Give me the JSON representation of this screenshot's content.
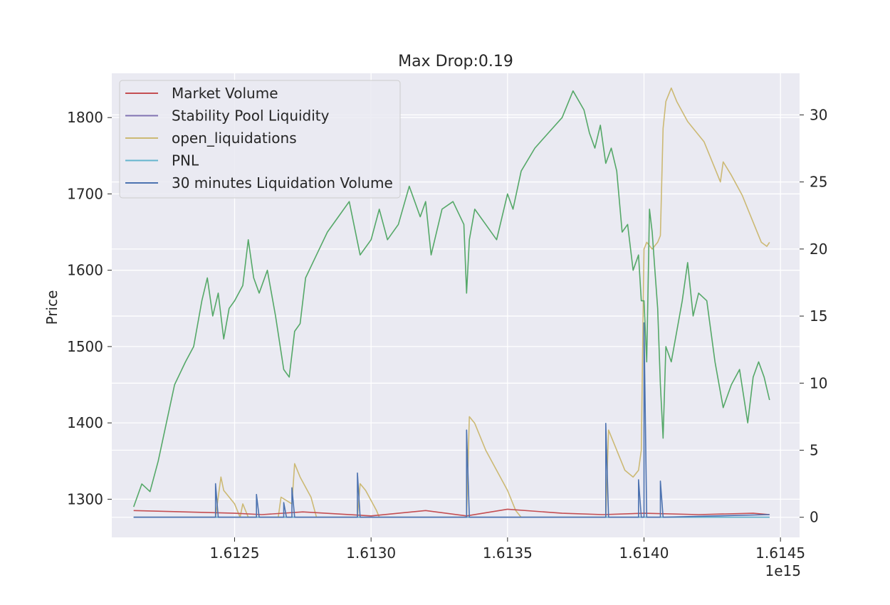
{
  "chart_data": {
    "type": "line",
    "title": "Max Drop:0.19",
    "ylabel": "Price",
    "ylabel_color": "#55a868",
    "x_offset_label": "1e15",
    "xlim": [
      1.61205,
      1.61457
    ],
    "ylim_left": [
      1250,
      1858
    ],
    "ylim_right": [
      -1.5,
      33.1
    ],
    "x_ticks": [
      {
        "value": 1.6125,
        "label": "1.6125"
      },
      {
        "value": 1.613,
        "label": "1.6130"
      },
      {
        "value": 1.6135,
        "label": "1.6135"
      },
      {
        "value": 1.614,
        "label": "1.6140"
      },
      {
        "value": 1.6145,
        "label": "1.6145"
      }
    ],
    "y_ticks_left": [
      {
        "value": 1300,
        "label": "1300"
      },
      {
        "value": 1400,
        "label": "1400"
      },
      {
        "value": 1500,
        "label": "1500"
      },
      {
        "value": 1600,
        "label": "1600"
      },
      {
        "value": 1700,
        "label": "1700"
      },
      {
        "value": 1800,
        "label": "1800"
      }
    ],
    "y_ticks_right": [
      {
        "value": 0,
        "label": "0"
      },
      {
        "value": 5,
        "label": "5"
      },
      {
        "value": 10,
        "label": "10"
      },
      {
        "value": 15,
        "label": "15"
      },
      {
        "value": 20,
        "label": "20"
      },
      {
        "value": 25,
        "label": "25"
      },
      {
        "value": 30,
        "label": "30"
      }
    ],
    "grid": true,
    "legend_position": "top-left",
    "series": [
      {
        "name": "Price",
        "axis": "left",
        "color": "#55a868",
        "in_legend": false,
        "x": [
          1.61213,
          1.61216,
          1.61219,
          1.61222,
          1.61225,
          1.61228,
          1.61232,
          1.61235,
          1.61238,
          1.6124,
          1.61242,
          1.61244,
          1.61246,
          1.61248,
          1.6125,
          1.61253,
          1.61255,
          1.61257,
          1.61259,
          1.61262,
          1.61265,
          1.61268,
          1.6127,
          1.61272,
          1.61274,
          1.61276,
          1.6128,
          1.61284,
          1.61288,
          1.61292,
          1.61296,
          1.613,
          1.61303,
          1.61306,
          1.6131,
          1.61314,
          1.61318,
          1.6132,
          1.61322,
          1.61326,
          1.6133,
          1.61334,
          1.61335,
          1.61336,
          1.61338,
          1.61342,
          1.61346,
          1.6135,
          1.61352,
          1.61355,
          1.6136,
          1.61365,
          1.6137,
          1.61374,
          1.61378,
          1.6138,
          1.61382,
          1.61384,
          1.61386,
          1.61388,
          1.6139,
          1.61392,
          1.61394,
          1.61396,
          1.61398,
          1.61399,
          1.614,
          1.61401,
          1.61402,
          1.61403,
          1.61404,
          1.61405,
          1.61406,
          1.61407,
          1.61408,
          1.6141,
          1.61412,
          1.61414,
          1.61416,
          1.61418,
          1.6142,
          1.61423,
          1.61426,
          1.61429,
          1.61432,
          1.61435,
          1.61438,
          1.6144,
          1.61442,
          1.61444,
          1.61446
        ],
        "y": [
          1290,
          1320,
          1310,
          1350,
          1400,
          1450,
          1480,
          1500,
          1560,
          1590,
          1540,
          1570,
          1510,
          1550,
          1560,
          1580,
          1640,
          1590,
          1570,
          1600,
          1540,
          1470,
          1460,
          1520,
          1530,
          1590,
          1620,
          1650,
          1670,
          1690,
          1620,
          1640,
          1680,
          1640,
          1660,
          1710,
          1670,
          1690,
          1620,
          1680,
          1690,
          1660,
          1570,
          1640,
          1680,
          1660,
          1640,
          1700,
          1680,
          1730,
          1760,
          1780,
          1800,
          1835,
          1810,
          1780,
          1760,
          1790,
          1740,
          1760,
          1730,
          1650,
          1660,
          1600,
          1620,
          1560,
          1560,
          1480,
          1680,
          1650,
          1600,
          1550,
          1450,
          1380,
          1500,
          1480,
          1520,
          1560,
          1610,
          1540,
          1570,
          1560,
          1480,
          1420,
          1450,
          1470,
          1400,
          1460,
          1480,
          1460,
          1430
        ]
      },
      {
        "name": "Market Volume",
        "axis": "right",
        "color": "#c44e52",
        "in_legend": true,
        "x": [
          1.61213,
          1.6125,
          1.6126,
          1.61275,
          1.613,
          1.6131,
          1.6132,
          1.61335,
          1.6135,
          1.6137,
          1.61385,
          1.614,
          1.6142,
          1.6144,
          1.61446
        ],
        "y": [
          0.5,
          0.3,
          0.2,
          0.4,
          0.1,
          0.3,
          0.5,
          0.1,
          0.6,
          0.3,
          0.2,
          0.3,
          0.2,
          0.3,
          0.2
        ]
      },
      {
        "name": "Stability Pool Liquidity",
        "axis": "right",
        "color": "#8172b2",
        "in_legend": true,
        "x": [
          1.61213,
          1.61446
        ],
        "y": [
          0,
          0
        ]
      },
      {
        "name": "open_liquidations",
        "axis": "right",
        "color": "#ccb974",
        "in_legend": true,
        "x": [
          1.61213,
          1.61243,
          1.61244,
          1.61245,
          1.61246,
          1.6125,
          1.61252,
          1.61253,
          1.61255,
          1.61266,
          1.61267,
          1.61271,
          1.61272,
          1.61274,
          1.61278,
          1.6128,
          1.61295,
          1.61296,
          1.61298,
          1.61302,
          1.61303,
          1.61335,
          1.61336,
          1.61338,
          1.61342,
          1.61346,
          1.6135,
          1.61353,
          1.61355,
          1.61386,
          1.61387,
          1.6139,
          1.61393,
          1.61396,
          1.61398,
          1.61399,
          1.614,
          1.61401,
          1.61403,
          1.61405,
          1.61406,
          1.61407,
          1.61408,
          1.6141,
          1.61412,
          1.61416,
          1.61418,
          1.61422,
          1.61426,
          1.61428,
          1.61429,
          1.61432,
          1.61436,
          1.6144,
          1.61443,
          1.61445,
          1.61446
        ],
        "y": [
          0,
          0,
          1.5,
          3,
          2,
          1,
          0,
          1,
          0,
          0,
          1.5,
          1,
          4,
          3,
          1.5,
          0,
          0,
          2.5,
          2,
          0.5,
          0,
          0,
          7.5,
          7,
          5,
          3.5,
          2,
          0.5,
          0,
          0,
          6.5,
          5,
          3.5,
          3,
          3.5,
          5,
          20,
          20.5,
          20,
          20.5,
          21,
          29,
          31,
          32,
          31,
          29.5,
          29,
          28,
          26,
          25,
          26.5,
          25.5,
          24,
          22,
          20.5,
          20.2,
          20.5
        ]
      },
      {
        "name": "PNL",
        "axis": "right",
        "color": "#64b5cd",
        "in_legend": true,
        "x": [
          1.61213,
          1.61446
        ],
        "y": [
          0,
          0
        ]
      },
      {
        "name": "30 minutes Liquidation Volume",
        "axis": "right",
        "color": "#4c72b0",
        "in_legend": true,
        "x": [
          1.61213,
          1.61243,
          1.61243,
          1.61244,
          1.61258,
          1.61258,
          1.61259,
          1.61268,
          1.61268,
          1.61269,
          1.61271,
          1.61271,
          1.61272,
          1.61295,
          1.61295,
          1.61296,
          1.61335,
          1.61335,
          1.61336,
          1.61386,
          1.61386,
          1.61387,
          1.61398,
          1.61398,
          1.61399,
          1.614,
          1.614,
          1.61401,
          1.61406,
          1.61406,
          1.61407,
          1.61446
        ],
        "y": [
          0,
          0,
          2.5,
          0,
          0,
          1.7,
          0,
          0,
          1.1,
          0,
          0,
          2.2,
          0,
          0,
          3.3,
          0,
          0,
          6.5,
          0,
          0,
          7,
          0,
          0,
          2.8,
          0,
          0,
          14.5,
          0,
          0,
          2.7,
          0,
          0.2
        ]
      }
    ]
  }
}
